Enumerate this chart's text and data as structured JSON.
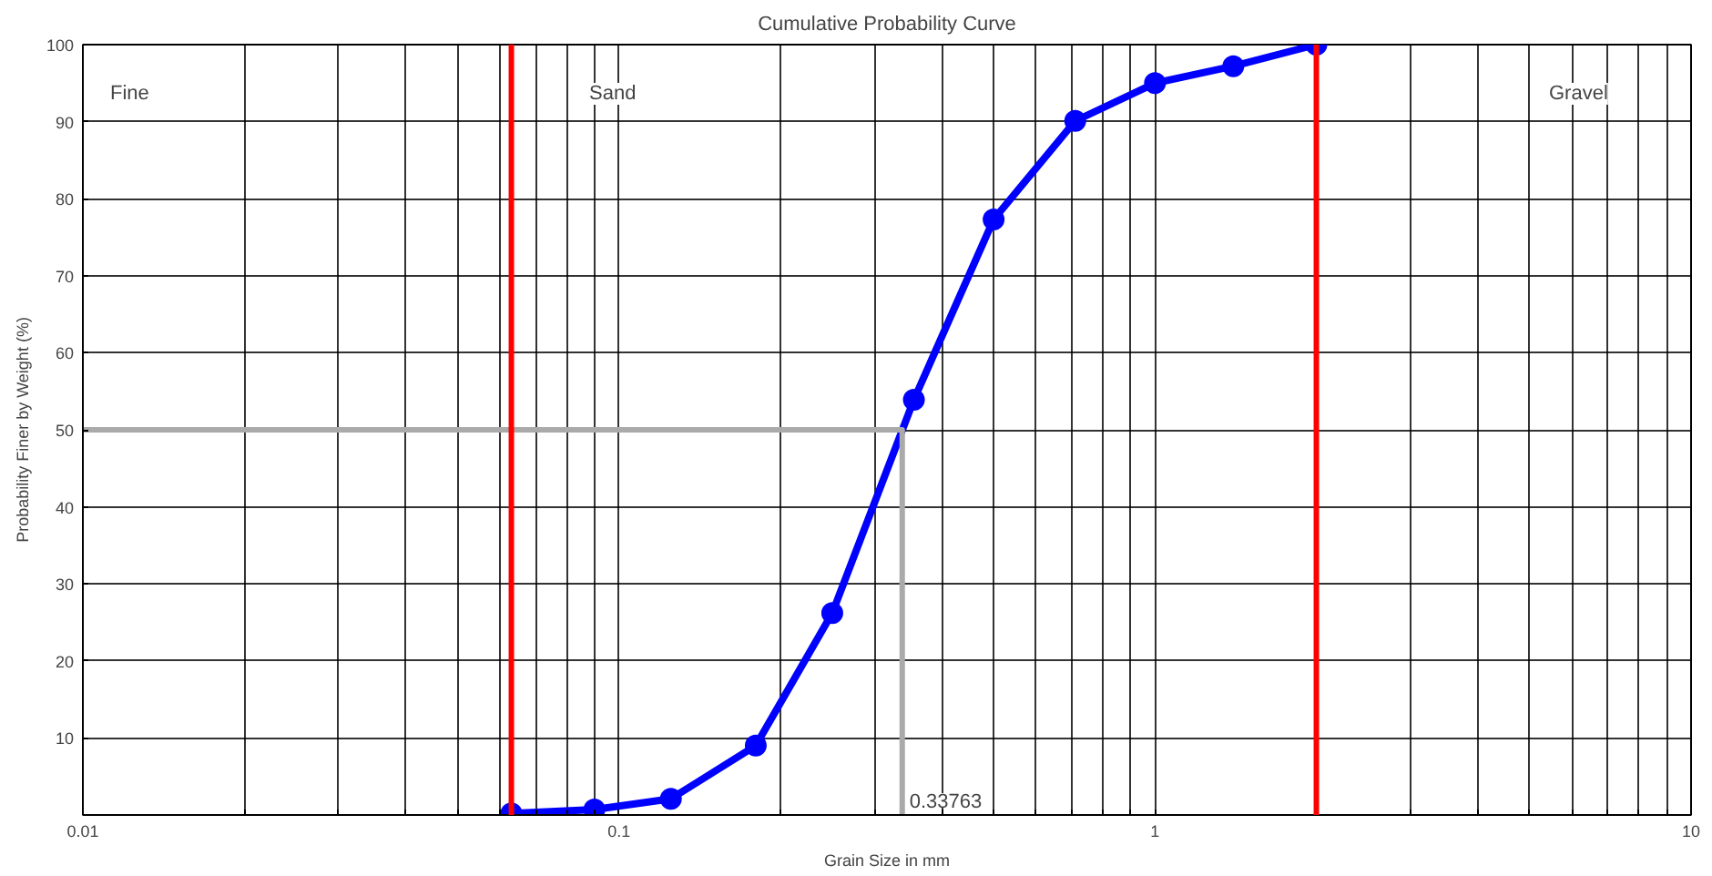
{
  "chart_data": {
    "type": "line",
    "title": "Cumulative Probability Curve",
    "xlabel": "Grain Size in mm",
    "ylabel": "Probability Finer by Weight (%)",
    "log": "x",
    "grid": true,
    "marker": "circle",
    "line_style": "solid",
    "xlim": [
      0.01,
      10
    ],
    "ylim": [
      0,
      100
    ],
    "xticks": [
      0.01,
      {
        "value": 0.02,
        "label": null
      },
      {
        "value": 0.03,
        "label": null
      },
      {
        "value": 0.04,
        "label": null
      },
      {
        "value": 0.05,
        "label": null
      },
      {
        "value": 0.06,
        "label": null
      },
      {
        "value": 0.07,
        "label": null
      },
      {
        "value": 0.08,
        "label": null
      },
      {
        "value": 0.09,
        "label": null
      },
      0.1,
      {
        "value": 0.2,
        "label": null
      },
      {
        "value": 0.3,
        "label": null
      },
      {
        "value": 0.4,
        "label": null
      },
      {
        "value": 0.5,
        "label": null
      },
      {
        "value": 0.6,
        "label": null
      },
      {
        "value": 0.7,
        "label": null
      },
      {
        "value": 0.8,
        "label": null
      },
      {
        "value": 0.9,
        "label": null
      },
      1,
      {
        "value": 2,
        "label": null
      },
      {
        "value": 3,
        "label": null
      },
      {
        "value": 4,
        "label": null
      },
      {
        "value": 5,
        "label": null
      },
      {
        "value": 6,
        "label": null
      },
      {
        "value": 7,
        "label": null
      },
      {
        "value": 8,
        "label": null
      },
      {
        "value": 9,
        "label": null
      },
      10
    ],
    "yticks": [
      {
        "value": 0,
        "label": null
      },
      10,
      20,
      30,
      40,
      50,
      60,
      70,
      80,
      90,
      100
    ],
    "series": [
      {
        "color": "#0000ff",
        "x": [
          0.063,
          0.09,
          0.125,
          0.18,
          0.25,
          0.355,
          0.5,
          0.71,
          1,
          1.4,
          2
        ],
        "values": [
          0.2,
          0.7,
          2.1,
          9.0,
          26.2,
          53.9,
          77.3,
          90.1,
          95.0,
          97.2,
          100
        ]
      },
      {
        "type": "line",
        "marker": "none",
        "color": "#aaaaaa",
        "x": [
          0.01,
          0.33763,
          0.33763
        ],
        "values": [
          50,
          50,
          0
        ]
      }
    ],
    "ref_lines": [
      {
        "axis": "x",
        "value": 0.063,
        "color": "#ff0000"
      },
      {
        "axis": "x",
        "value": 2,
        "color": "#ff0000"
      }
    ],
    "annotations": [
      {
        "text": "0.33763",
        "x": 0.33763,
        "y": 0
      },
      "Fine",
      "Sand",
      "Gravel"
    ]
  }
}
